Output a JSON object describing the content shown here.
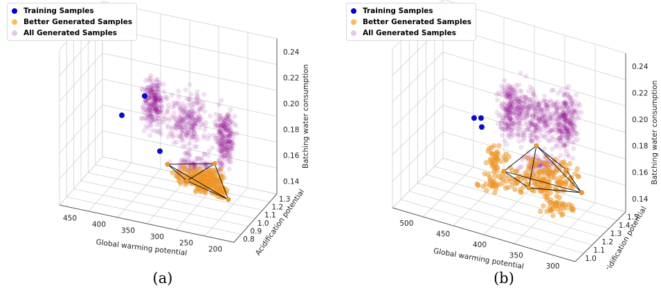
{
  "legend": [
    {
      "label": "Training Samples",
      "color": "#0000cc"
    },
    {
      "label": "Better Generated Samples",
      "color": "#f5a623"
    },
    {
      "label": "All Generated Samples",
      "color": "#cfa3d6"
    }
  ],
  "colors": {
    "training": "#0a0ad0",
    "better": "#f39a2c",
    "all": "#8b008b",
    "hull": "#000000",
    "grid": "#cfcfcf"
  },
  "chart_data": [
    {
      "type": "scatter",
      "caption": "(a)",
      "xlabel": "Global warming potential",
      "ylabel": "Acidification potential",
      "zlabel": "Batching water consumption",
      "xticks": [
        "450",
        "400",
        "350",
        "300",
        "250",
        "200"
      ],
      "yticks": [
        "0.8",
        "0.9",
        "1.0",
        "1.1",
        "1.2",
        "1.3"
      ],
      "zticks": [
        "0.14",
        "0.16",
        "0.18",
        "0.20",
        "0.22",
        "0.24"
      ],
      "xlim": [
        195,
        470
      ],
      "ylim": [
        0.75,
        1.35
      ],
      "zlim": [
        0.13,
        0.25
      ],
      "grid": true,
      "legend_position": "top-left",
      "series": [
        {
          "name": "Training Samples",
          "points": [
            [
              420,
              1.0,
              0.205
            ],
            [
              455,
              0.95,
              0.195
            ],
            [
              360,
              1.05,
              0.165
            ]
          ]
        },
        {
          "name": "Better Generated Samples",
          "points": [
            [
              330,
              1.05,
              0.145
            ],
            [
              250,
              1.1,
              0.142
            ],
            [
              215,
              0.95,
              0.125
            ],
            [
              290,
              1.0,
              0.13
            ],
            [
              270,
              0.9,
              0.128
            ],
            [
              310,
              1.15,
              0.14
            ]
          ]
        },
        {
          "name": "All Generated Samples",
          "points": []
        }
      ]
    },
    {
      "type": "scatter",
      "caption": "(b)",
      "xlabel": "Global warming potential",
      "ylabel": "Acidification potential",
      "zlabel": "Batching water consumption",
      "xticks": [
        "500",
        "450",
        "400",
        "350",
        "300"
      ],
      "yticks": [
        "1.0",
        "1.1",
        "1.2",
        "1.3",
        "1.4",
        "1.5"
      ],
      "zticks": [
        "0.14",
        "0.16",
        "0.18",
        "0.20",
        "0.22",
        "0.24"
      ],
      "xlim": [
        285,
        520
      ],
      "ylim": [
        0.95,
        1.55
      ],
      "zlim": [
        0.13,
        0.25
      ],
      "grid": true,
      "legend_position": "top-left",
      "series": [
        {
          "name": "Training Samples",
          "points": [
            [
              500,
              1.1,
              0.185
            ],
            [
              490,
              1.12,
              0.185
            ],
            [
              488,
              1.1,
              0.178
            ]
          ]
        },
        {
          "name": "Better Generated Samples",
          "points": [
            [
              400,
              1.25,
              0.17
            ],
            [
              440,
              1.2,
              0.14
            ],
            [
              360,
              1.3,
              0.13
            ],
            [
              320,
              1.35,
              0.12
            ],
            [
              380,
              1.15,
              0.125
            ]
          ]
        },
        {
          "name": "All Generated Samples",
          "points": []
        }
      ]
    }
  ]
}
